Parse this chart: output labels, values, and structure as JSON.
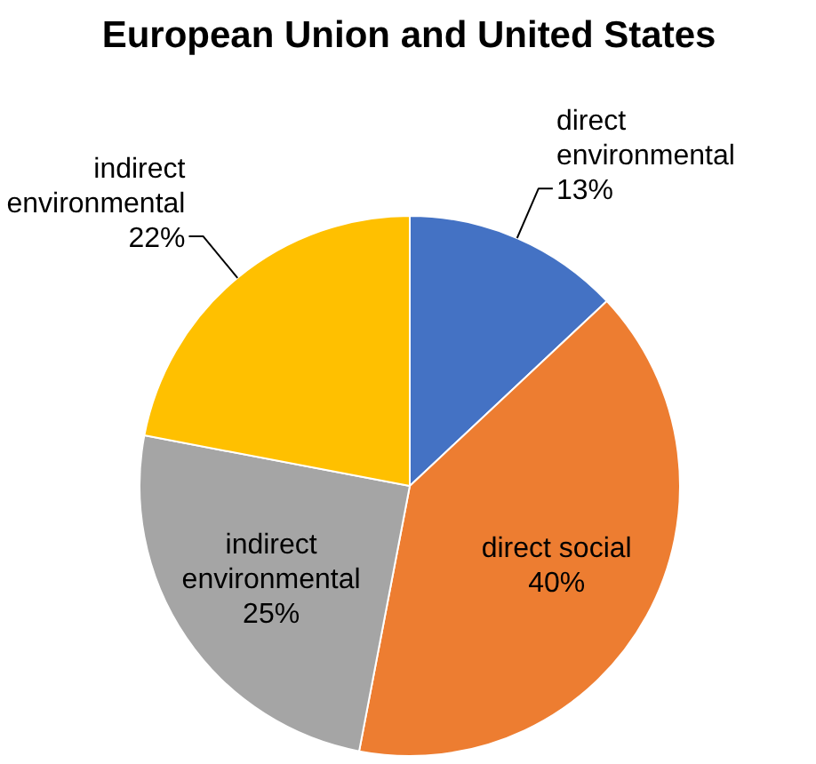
{
  "chart_data": {
    "type": "pie",
    "title": "European Union and United States",
    "categories": [
      "direct environmental",
      "direct social",
      "indirect environmental",
      "indirect environmental"
    ],
    "values": [
      13,
      40,
      25,
      22
    ],
    "colors": [
      "#4472c4",
      "#ed7d31",
      "#a5a5a5",
      "#ffc000"
    ],
    "value_labels": [
      "13%",
      "40%",
      "25%",
      "22%"
    ]
  }
}
